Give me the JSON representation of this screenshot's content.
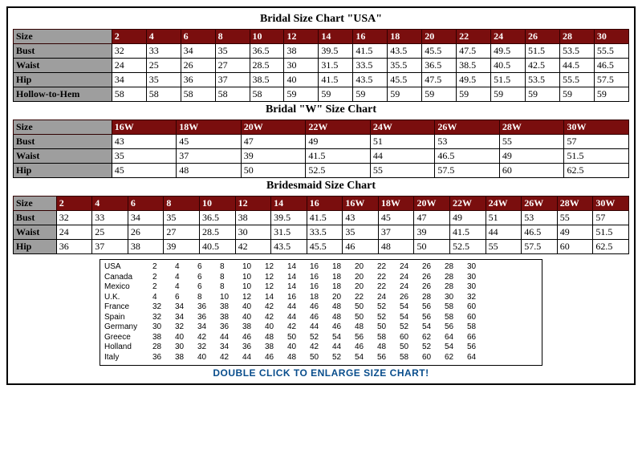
{
  "colors": {
    "header_bg": "#7a0e0e",
    "header_fg": "#ffffff",
    "label_bg": "#9e9e9e",
    "border": "#000000",
    "footer_color": "#084d8c"
  },
  "usa": {
    "title": "Bridal Size Chart \"USA\"",
    "label_width_pct": 16,
    "col_width_pct": 5.6,
    "headers": [
      "Size",
      "2",
      "4",
      "6",
      "8",
      "10",
      "12",
      "14",
      "16",
      "18",
      "20",
      "22",
      "24",
      "26",
      "28",
      "30"
    ],
    "rows": [
      [
        "Bust",
        "32",
        "33",
        "34",
        "35",
        "36.5",
        "38",
        "39.5",
        "41.5",
        "43.5",
        "45.5",
        "47.5",
        "49.5",
        "51.5",
        "53.5",
        "55.5"
      ],
      [
        "Waist",
        "24",
        "25",
        "26",
        "27",
        "28.5",
        "30",
        "31.5",
        "33.5",
        "35.5",
        "36.5",
        "38.5",
        "40.5",
        "42.5",
        "44.5",
        "46.5"
      ],
      [
        "Hip",
        "34",
        "35",
        "36",
        "37",
        "38.5",
        "40",
        "41.5",
        "43.5",
        "45.5",
        "47.5",
        "49.5",
        "51.5",
        "53.5",
        "55.5",
        "57.5"
      ],
      [
        "Hollow-to-Hem",
        "58",
        "58",
        "58",
        "58",
        "58",
        "59",
        "59",
        "59",
        "59",
        "59",
        "59",
        "59",
        "59",
        "59",
        "59"
      ]
    ]
  },
  "wchart": {
    "title": "Bridal \"W\" Size Chart",
    "label_width_pct": 16,
    "col_width_pct": 10.5,
    "headers": [
      "Size",
      "16W",
      "18W",
      "20W",
      "22W",
      "24W",
      "26W",
      "28W",
      "30W"
    ],
    "rows": [
      [
        "Bust",
        "43",
        "45",
        "47",
        "49",
        "51",
        "53",
        "55",
        "57"
      ],
      [
        "Waist",
        "35",
        "37",
        "39",
        "41.5",
        "44",
        "46.5",
        "49",
        "51.5"
      ],
      [
        "Hip",
        "45",
        "48",
        "50",
        "52.5",
        "55",
        "57.5",
        "60",
        "62.5"
      ]
    ]
  },
  "bm": {
    "title": "Bridesmaid Size Chart",
    "label_width_pct": 7,
    "col_width_pct": 5.8125,
    "headers": [
      "Size",
      "2",
      "4",
      "6",
      "8",
      "10",
      "12",
      "14",
      "16",
      "16W",
      "18W",
      "20W",
      "22W",
      "24W",
      "26W",
      "28W",
      "30W"
    ],
    "rows": [
      [
        "Bust",
        "32",
        "33",
        "34",
        "35",
        "36.5",
        "38",
        "39.5",
        "41.5",
        "43",
        "45",
        "47",
        "49",
        "51",
        "53",
        "55",
        "57"
      ],
      [
        "Waist",
        "24",
        "25",
        "26",
        "27",
        "28.5",
        "30",
        "31.5",
        "33.5",
        "35",
        "37",
        "39",
        "41.5",
        "44",
        "46.5",
        "49",
        "51.5"
      ],
      [
        "Hip",
        "36",
        "37",
        "38",
        "39",
        "40.5",
        "42",
        "43.5",
        "45.5",
        "46",
        "48",
        "50",
        "52.5",
        "55",
        "57.5",
        "60",
        "62.5"
      ]
    ]
  },
  "intl": {
    "rows": [
      [
        "USA",
        "2",
        "4",
        "6",
        "8",
        "10",
        "12",
        "14",
        "16",
        "18",
        "20",
        "22",
        "24",
        "26",
        "28",
        "30"
      ],
      [
        "Canada",
        "2",
        "4",
        "6",
        "8",
        "10",
        "12",
        "14",
        "16",
        "18",
        "20",
        "22",
        "24",
        "26",
        "28",
        "30"
      ],
      [
        "Mexico",
        "2",
        "4",
        "6",
        "8",
        "10",
        "12",
        "14",
        "16",
        "18",
        "20",
        "22",
        "24",
        "26",
        "28",
        "30"
      ],
      [
        "U.K.",
        "4",
        "6",
        "8",
        "10",
        "12",
        "14",
        "16",
        "18",
        "20",
        "22",
        "24",
        "26",
        "28",
        "30",
        "32"
      ],
      [
        "France",
        "32",
        "34",
        "36",
        "38",
        "40",
        "42",
        "44",
        "46",
        "48",
        "50",
        "52",
        "54",
        "56",
        "58",
        "60"
      ],
      [
        "Spain",
        "32",
        "34",
        "36",
        "38",
        "40",
        "42",
        "44",
        "46",
        "48",
        "50",
        "52",
        "54",
        "56",
        "58",
        "60"
      ],
      [
        "Germany",
        "30",
        "32",
        "34",
        "36",
        "38",
        "40",
        "42",
        "44",
        "46",
        "48",
        "50",
        "52",
        "54",
        "56",
        "58"
      ],
      [
        "Greece",
        "38",
        "40",
        "42",
        "44",
        "46",
        "48",
        "50",
        "52",
        "54",
        "56",
        "58",
        "60",
        "62",
        "64",
        "66"
      ],
      [
        "Holland",
        "28",
        "30",
        "32",
        "34",
        "36",
        "38",
        "40",
        "42",
        "44",
        "46",
        "48",
        "50",
        "52",
        "54",
        "56"
      ],
      [
        "Italy",
        "36",
        "38",
        "40",
        "42",
        "44",
        "46",
        "48",
        "50",
        "52",
        "54",
        "56",
        "58",
        "60",
        "62",
        "64"
      ]
    ]
  },
  "footer": "DOUBLE CLICK TO ENLARGE SIZE CHART!"
}
